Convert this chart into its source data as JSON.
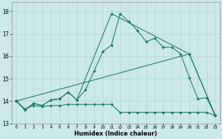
{
  "xlabel": "Humidex (Indice chaleur)",
  "line_color": "#1a7a6e",
  "bg_color": "#cce8e8",
  "grid_color": "#afd4d4",
  "ylim": [
    13.0,
    18.4
  ],
  "xlim": [
    -0.5,
    23.5
  ],
  "yticks": [
    13,
    14,
    15,
    16,
    17,
    18
  ],
  "line1_x": [
    0,
    1,
    2,
    3,
    4,
    5,
    6,
    7,
    8,
    9,
    10,
    11,
    12,
    13,
    14,
    15,
    16,
    17,
    18,
    19,
    20,
    21,
    22,
    23
  ],
  "line1_y": [
    14.0,
    13.6,
    13.9,
    13.8,
    14.05,
    14.1,
    14.4,
    14.05,
    14.5,
    15.35,
    16.2,
    16.5,
    17.9,
    17.55,
    17.15,
    16.65,
    16.8,
    16.4,
    16.4,
    16.1,
    15.05,
    14.1,
    14.15,
    13.35
  ],
  "line2_x": [
    0,
    1,
    2,
    3,
    4,
    5,
    6,
    7,
    11,
    20,
    23
  ],
  "line2_y": [
    14.0,
    13.6,
    13.9,
    13.8,
    14.05,
    14.1,
    14.4,
    14.05,
    17.9,
    16.1,
    13.35
  ],
  "line3_x": [
    0,
    20,
    23
  ],
  "line3_y": [
    14.0,
    16.1,
    13.35
  ],
  "line4_x": [
    0,
    1,
    2,
    3,
    4,
    5,
    6,
    7,
    8,
    9,
    10,
    11,
    12,
    13,
    14,
    15,
    16,
    17,
    18,
    19,
    20,
    21,
    22,
    23
  ],
  "line4_y": [
    14.0,
    13.65,
    13.8,
    13.75,
    13.8,
    13.8,
    13.85,
    13.85,
    13.85,
    13.85,
    13.85,
    13.85,
    13.5,
    13.5,
    13.5,
    13.5,
    13.5,
    13.5,
    13.5,
    13.5,
    13.5,
    13.5,
    13.5,
    13.35
  ]
}
